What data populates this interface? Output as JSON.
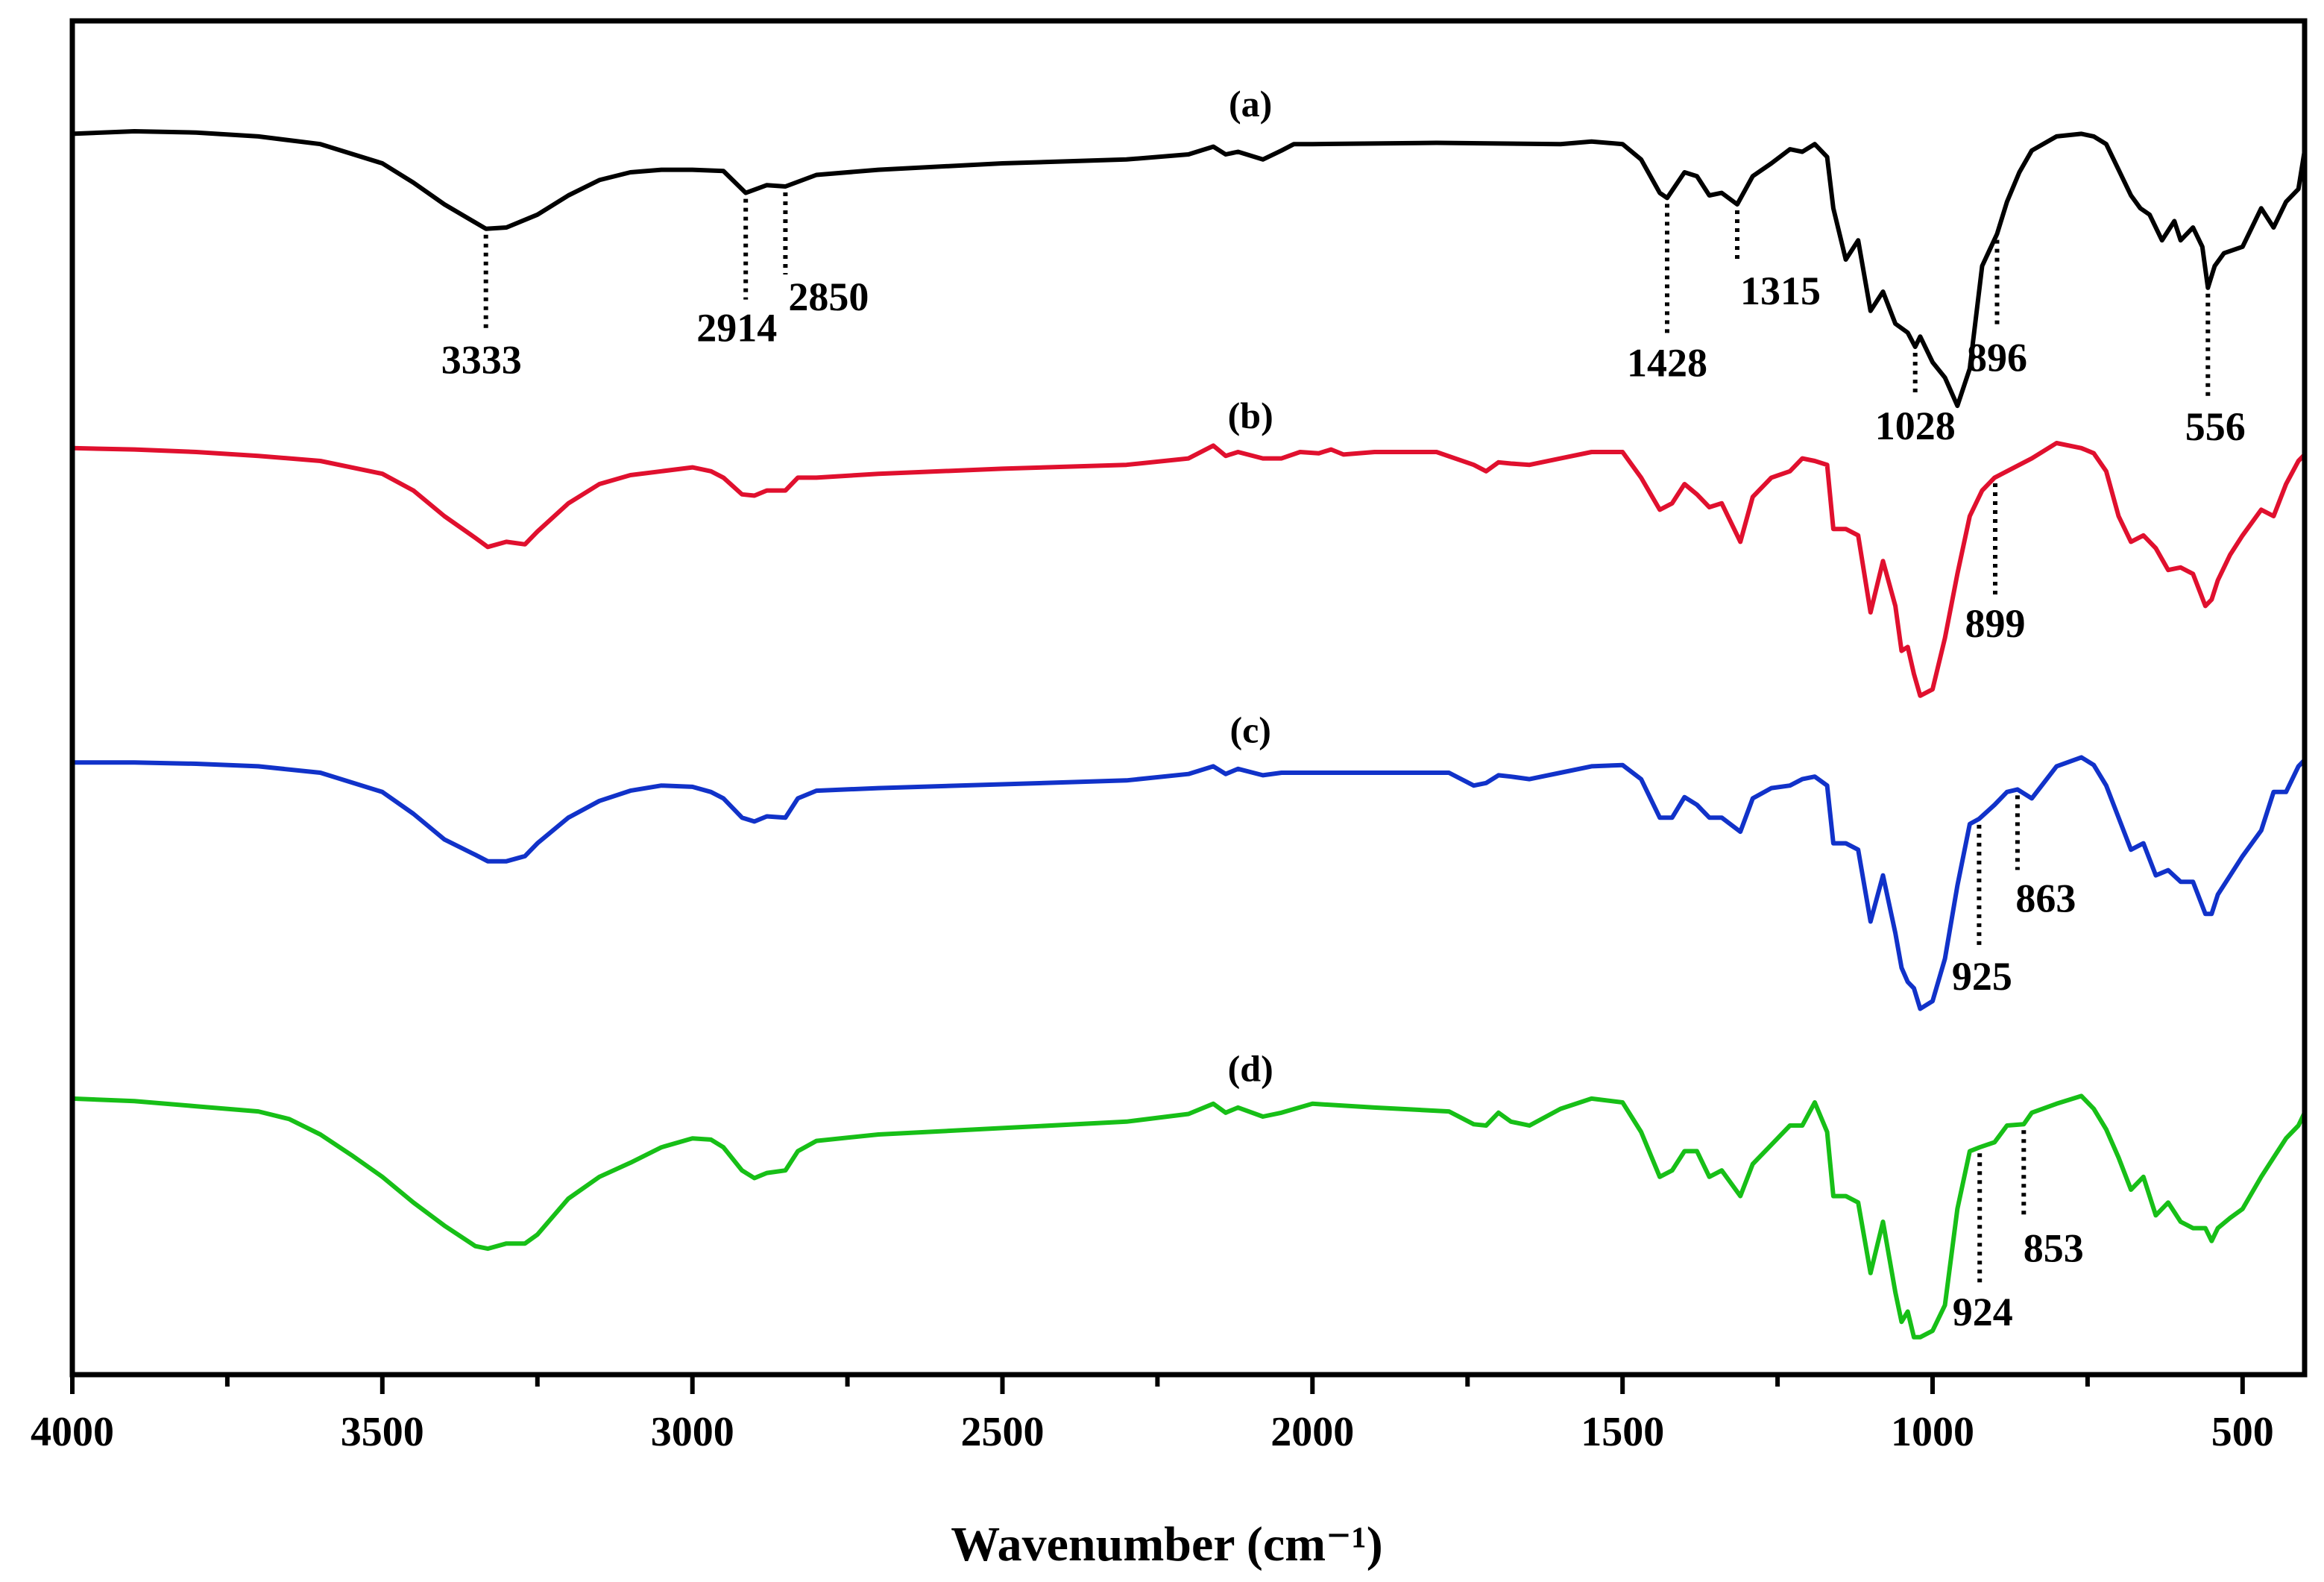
{
  "chart_data": {
    "type": "line",
    "title": "",
    "xlabel": "Wavenumber (cm⁻¹)",
    "ylabel": "",
    "xlim": [
      4000,
      400
    ],
    "x_reversed": true,
    "xticks": [
      4000,
      3500,
      3000,
      2500,
      2000,
      1500,
      1000,
      500
    ],
    "minor_xticks": [
      3750,
      3250,
      2750,
      2250,
      1750,
      1250,
      750
    ],
    "ylim": [
      0,
      100
    ],
    "yticks_visible": false,
    "grid": false,
    "series": [
      {
        "name": "(a)",
        "color": "#000000",
        "offset": 75,
        "x": [
          4000,
          3900,
          3800,
          3700,
          3600,
          3500,
          3450,
          3400,
          3333,
          3300,
          3250,
          3200,
          3150,
          3100,
          3050,
          3000,
          2950,
          2914,
          2880,
          2850,
          2800,
          2700,
          2500,
          2300,
          2200,
          2160,
          2140,
          2120,
          2080,
          2050,
          2030,
          2000,
          1800,
          1600,
          1550,
          1500,
          1470,
          1440,
          1428,
          1400,
          1380,
          1360,
          1340,
          1315,
          1290,
          1260,
          1230,
          1210,
          1190,
          1170,
          1160,
          1140,
          1120,
          1100,
          1080,
          1060,
          1040,
          1028,
          1020,
          1000,
          980,
          960,
          940,
          920,
          896,
          880,
          860,
          840,
          800,
          760,
          740,
          720,
          700,
          680,
          665,
          650,
          630,
          610,
          600,
          580,
          565,
          556,
          545,
          530,
          500,
          470,
          450,
          430,
          410,
          400
        ],
        "values": [
          19.8,
          20,
          19.9,
          19.6,
          19,
          17.5,
          16,
          14.3,
          12.4,
          12.5,
          13.5,
          15,
          16.2,
          16.8,
          17,
          17,
          16.9,
          15.2,
          15.8,
          15.7,
          16.6,
          17,
          17.5,
          17.8,
          18.2,
          18.8,
          18.2,
          18.4,
          17.8,
          18.5,
          19,
          19,
          19.1,
          19,
          19.2,
          19,
          17.8,
          15.2,
          14.8,
          16.8,
          16.5,
          15,
          15.2,
          14.3,
          16.5,
          17.5,
          18.6,
          18.4,
          19,
          18,
          14,
          10,
          11.5,
          6,
          7.5,
          5,
          4.3,
          3.2,
          4,
          2,
          0.8,
          -1.4,
          1.5,
          9.5,
          12,
          14.5,
          16.8,
          18.5,
          19.6,
          19.8,
          19.6,
          19,
          17,
          15,
          14,
          13.5,
          11.5,
          13,
          11.5,
          12.5,
          11,
          7.8,
          9.5,
          10.5,
          11,
          14,
          12.5,
          14.5,
          15.5,
          18.5
        ]
      },
      {
        "name": "(b)",
        "color": "#e0102e",
        "offset": 50.5,
        "x": [
          4000,
          3900,
          3800,
          3700,
          3600,
          3500,
          3450,
          3400,
          3350,
          3330,
          3300,
          3270,
          3250,
          3200,
          3150,
          3100,
          3050,
          3000,
          2970,
          2950,
          2920,
          2900,
          2880,
          2850,
          2830,
          2800,
          2700,
          2500,
          2300,
          2200,
          2160,
          2140,
          2120,
          2080,
          2050,
          2020,
          1990,
          1970,
          1950,
          1900,
          1800,
          1740,
          1720,
          1700,
          1680,
          1650,
          1600,
          1550,
          1500,
          1470,
          1440,
          1420,
          1400,
          1380,
          1360,
          1340,
          1310,
          1290,
          1260,
          1230,
          1210,
          1190,
          1170,
          1160,
          1140,
          1120,
          1100,
          1080,
          1060,
          1050,
          1040,
          1030,
          1020,
          1000,
          980,
          960,
          940,
          920,
          900,
          880,
          860,
          840,
          800,
          760,
          740,
          720,
          700,
          680,
          660,
          640,
          620,
          600,
          580,
          560,
          550,
          540,
          520,
          500,
          470,
          450,
          430,
          410,
          400
        ],
        "values": [
          19.8,
          19.7,
          19.5,
          19.2,
          18.8,
          17.8,
          16.5,
          14.5,
          12.8,
          12.1,
          12.5,
          12.3,
          13.3,
          15.5,
          17,
          17.7,
          18,
          18.3,
          18,
          17.5,
          16.2,
          16.1,
          16.5,
          16.5,
          17.5,
          17.5,
          17.8,
          18.2,
          18.5,
          19,
          20,
          19.2,
          19.5,
          19,
          19,
          19.5,
          19.4,
          19.7,
          19.3,
          19.5,
          19.5,
          18.5,
          18,
          18.7,
          18.6,
          18.5,
          19,
          19.5,
          19.5,
          17.5,
          15,
          15.5,
          17,
          16.2,
          15.2,
          15.5,
          12.5,
          16,
          17.5,
          18,
          19,
          18.8,
          18.5,
          13.5,
          13.5,
          13,
          7,
          11,
          7.5,
          4,
          4.3,
          2.2,
          0.5,
          1,
          5,
          10,
          14.5,
          16.5,
          17.5,
          18,
          18.5,
          19,
          20.2,
          19.8,
          19.4,
          18,
          14.5,
          12.5,
          13,
          12,
          10.3,
          10.5,
          10,
          7.5,
          8,
          9.5,
          11.5,
          13,
          15,
          14.5,
          17,
          18.8,
          19.3
        ]
      },
      {
        "name": "(c)",
        "color": "#1132c9",
        "offset": 26,
        "x": [
          4000,
          3900,
          3800,
          3700,
          3600,
          3500,
          3450,
          3400,
          3350,
          3330,
          3300,
          3270,
          3250,
          3200,
          3150,
          3100,
          3050,
          3000,
          2970,
          2950,
          2920,
          2900,
          2880,
          2850,
          2830,
          2800,
          2700,
          2500,
          2300,
          2200,
          2160,
          2140,
          2120,
          2080,
          2050,
          2000,
          1900,
          1780,
          1740,
          1720,
          1700,
          1680,
          1650,
          1600,
          1550,
          1500,
          1470,
          1440,
          1420,
          1400,
          1380,
          1360,
          1340,
          1310,
          1290,
          1260,
          1230,
          1210,
          1190,
          1170,
          1160,
          1140,
          1120,
          1100,
          1080,
          1060,
          1050,
          1040,
          1030,
          1020,
          1000,
          980,
          960,
          940,
          925,
          900,
          880,
          863,
          840,
          800,
          760,
          740,
          720,
          700,
          680,
          660,
          640,
          620,
          600,
          580,
          560,
          550,
          540,
          520,
          500,
          470,
          450,
          430,
          410,
          400
        ],
        "values": [
          19.8,
          19.8,
          19.7,
          19.5,
          19,
          17.5,
          15.8,
          13.8,
          12.6,
          12.1,
          12.1,
          12.5,
          13.5,
          15.5,
          16.8,
          17.6,
          18,
          17.9,
          17.5,
          17,
          15.5,
          15.2,
          15.6,
          15.5,
          17,
          17.6,
          17.8,
          18.1,
          18.4,
          18.9,
          19.5,
          18.9,
          19.3,
          18.8,
          19,
          19,
          19,
          19,
          18,
          18.2,
          18.8,
          18.7,
          18.5,
          19,
          19.5,
          19.6,
          18.5,
          15.5,
          15.5,
          17.1,
          16.5,
          15.5,
          15.5,
          14.4,
          17,
          17.8,
          18,
          18.5,
          18.7,
          18,
          13.5,
          13.5,
          13,
          7.4,
          11,
          6.5,
          3.8,
          2.7,
          2.2,
          0.6,
          1.2,
          4.5,
          10.2,
          15,
          15.4,
          16.5,
          17.5,
          17.7,
          17,
          19.5,
          20.2,
          19.6,
          18,
          15.5,
          13,
          13.5,
          11,
          11.4,
          10.5,
          10.5,
          8,
          8,
          9.5,
          11,
          12.5,
          14.5,
          17.5,
          17.5,
          19.5,
          20
        ]
      },
      {
        "name": "(d)",
        "color": "#17bf17",
        "offset": 0,
        "x": [
          4000,
          3900,
          3800,
          3700,
          3650,
          3600,
          3550,
          3500,
          3450,
          3400,
          3350,
          3330,
          3300,
          3270,
          3250,
          3200,
          3150,
          3100,
          3050,
          3000,
          2970,
          2950,
          2920,
          2900,
          2880,
          2850,
          2830,
          2800,
          2700,
          2500,
          2300,
          2200,
          2160,
          2140,
          2120,
          2080,
          2050,
          2000,
          1900,
          1780,
          1740,
          1720,
          1700,
          1680,
          1650,
          1600,
          1550,
          1500,
          1470,
          1440,
          1420,
          1400,
          1380,
          1360,
          1340,
          1310,
          1290,
          1260,
          1230,
          1210,
          1190,
          1170,
          1160,
          1140,
          1120,
          1100,
          1080,
          1060,
          1050,
          1040,
          1030,
          1020,
          1000,
          980,
          960,
          940,
          924,
          900,
          880,
          853,
          840,
          800,
          760,
          740,
          720,
          700,
          680,
          660,
          640,
          620,
          600,
          580,
          560,
          550,
          540,
          520,
          500,
          470,
          450,
          430,
          410,
          400
        ],
        "values": [
          19.6,
          19.4,
          19,
          18.6,
          18,
          16.8,
          15.2,
          13.5,
          11.5,
          9.7,
          8.1,
          7.9,
          8.3,
          8.3,
          9,
          11.8,
          13.5,
          14.6,
          15.8,
          16.5,
          16.4,
          15.8,
          14,
          13.4,
          13.8,
          14,
          15.5,
          16.3,
          16.8,
          17.3,
          17.8,
          18.4,
          19.2,
          18.5,
          18.9,
          18.2,
          18.5,
          19.2,
          18.9,
          18.6,
          17.6,
          17.5,
          18.5,
          17.8,
          17.5,
          18.8,
          19.6,
          19.3,
          17,
          13.5,
          14,
          15.5,
          15.5,
          13.5,
          14,
          12,
          14.5,
          16,
          17.5,
          17.5,
          19.3,
          17,
          12,
          12,
          11.5,
          6,
          10,
          4.5,
          2.2,
          3,
          1,
          1,
          1.5,
          3.5,
          11,
          15.5,
          15.8,
          16.2,
          17.5,
          17.6,
          18.5,
          19.2,
          19.8,
          18.8,
          17.2,
          15,
          12.5,
          13.5,
          10.5,
          11.5,
          10,
          9.5,
          9.5,
          8.5,
          9.5,
          10.3,
          11,
          13.5,
          15,
          16.5,
          17.5,
          18.5
        ]
      }
    ],
    "annotations": [
      {
        "series": "(a)",
        "x": 3333,
        "label": "3333"
      },
      {
        "series": "(a)",
        "x": 2914,
        "label": "2914"
      },
      {
        "series": "(a)",
        "x": 2850,
        "label": "2850"
      },
      {
        "series": "(a)",
        "x": 1428,
        "label": "1428"
      },
      {
        "series": "(a)",
        "x": 1315,
        "label": "1315"
      },
      {
        "series": "(a)",
        "x": 1028,
        "label": "1028"
      },
      {
        "series": "(a)",
        "x": 896,
        "label": "896"
      },
      {
        "series": "(a)",
        "x": 556,
        "label": "556"
      },
      {
        "series": "(b)",
        "x": 899,
        "label": "899"
      },
      {
        "series": "(c)",
        "x": 925,
        "label": "925"
      },
      {
        "series": "(c)",
        "x": 863,
        "label": "863"
      },
      {
        "series": "(d)",
        "x": 924,
        "label": "924"
      },
      {
        "series": "(d)",
        "x": 853,
        "label": "853"
      }
    ]
  }
}
